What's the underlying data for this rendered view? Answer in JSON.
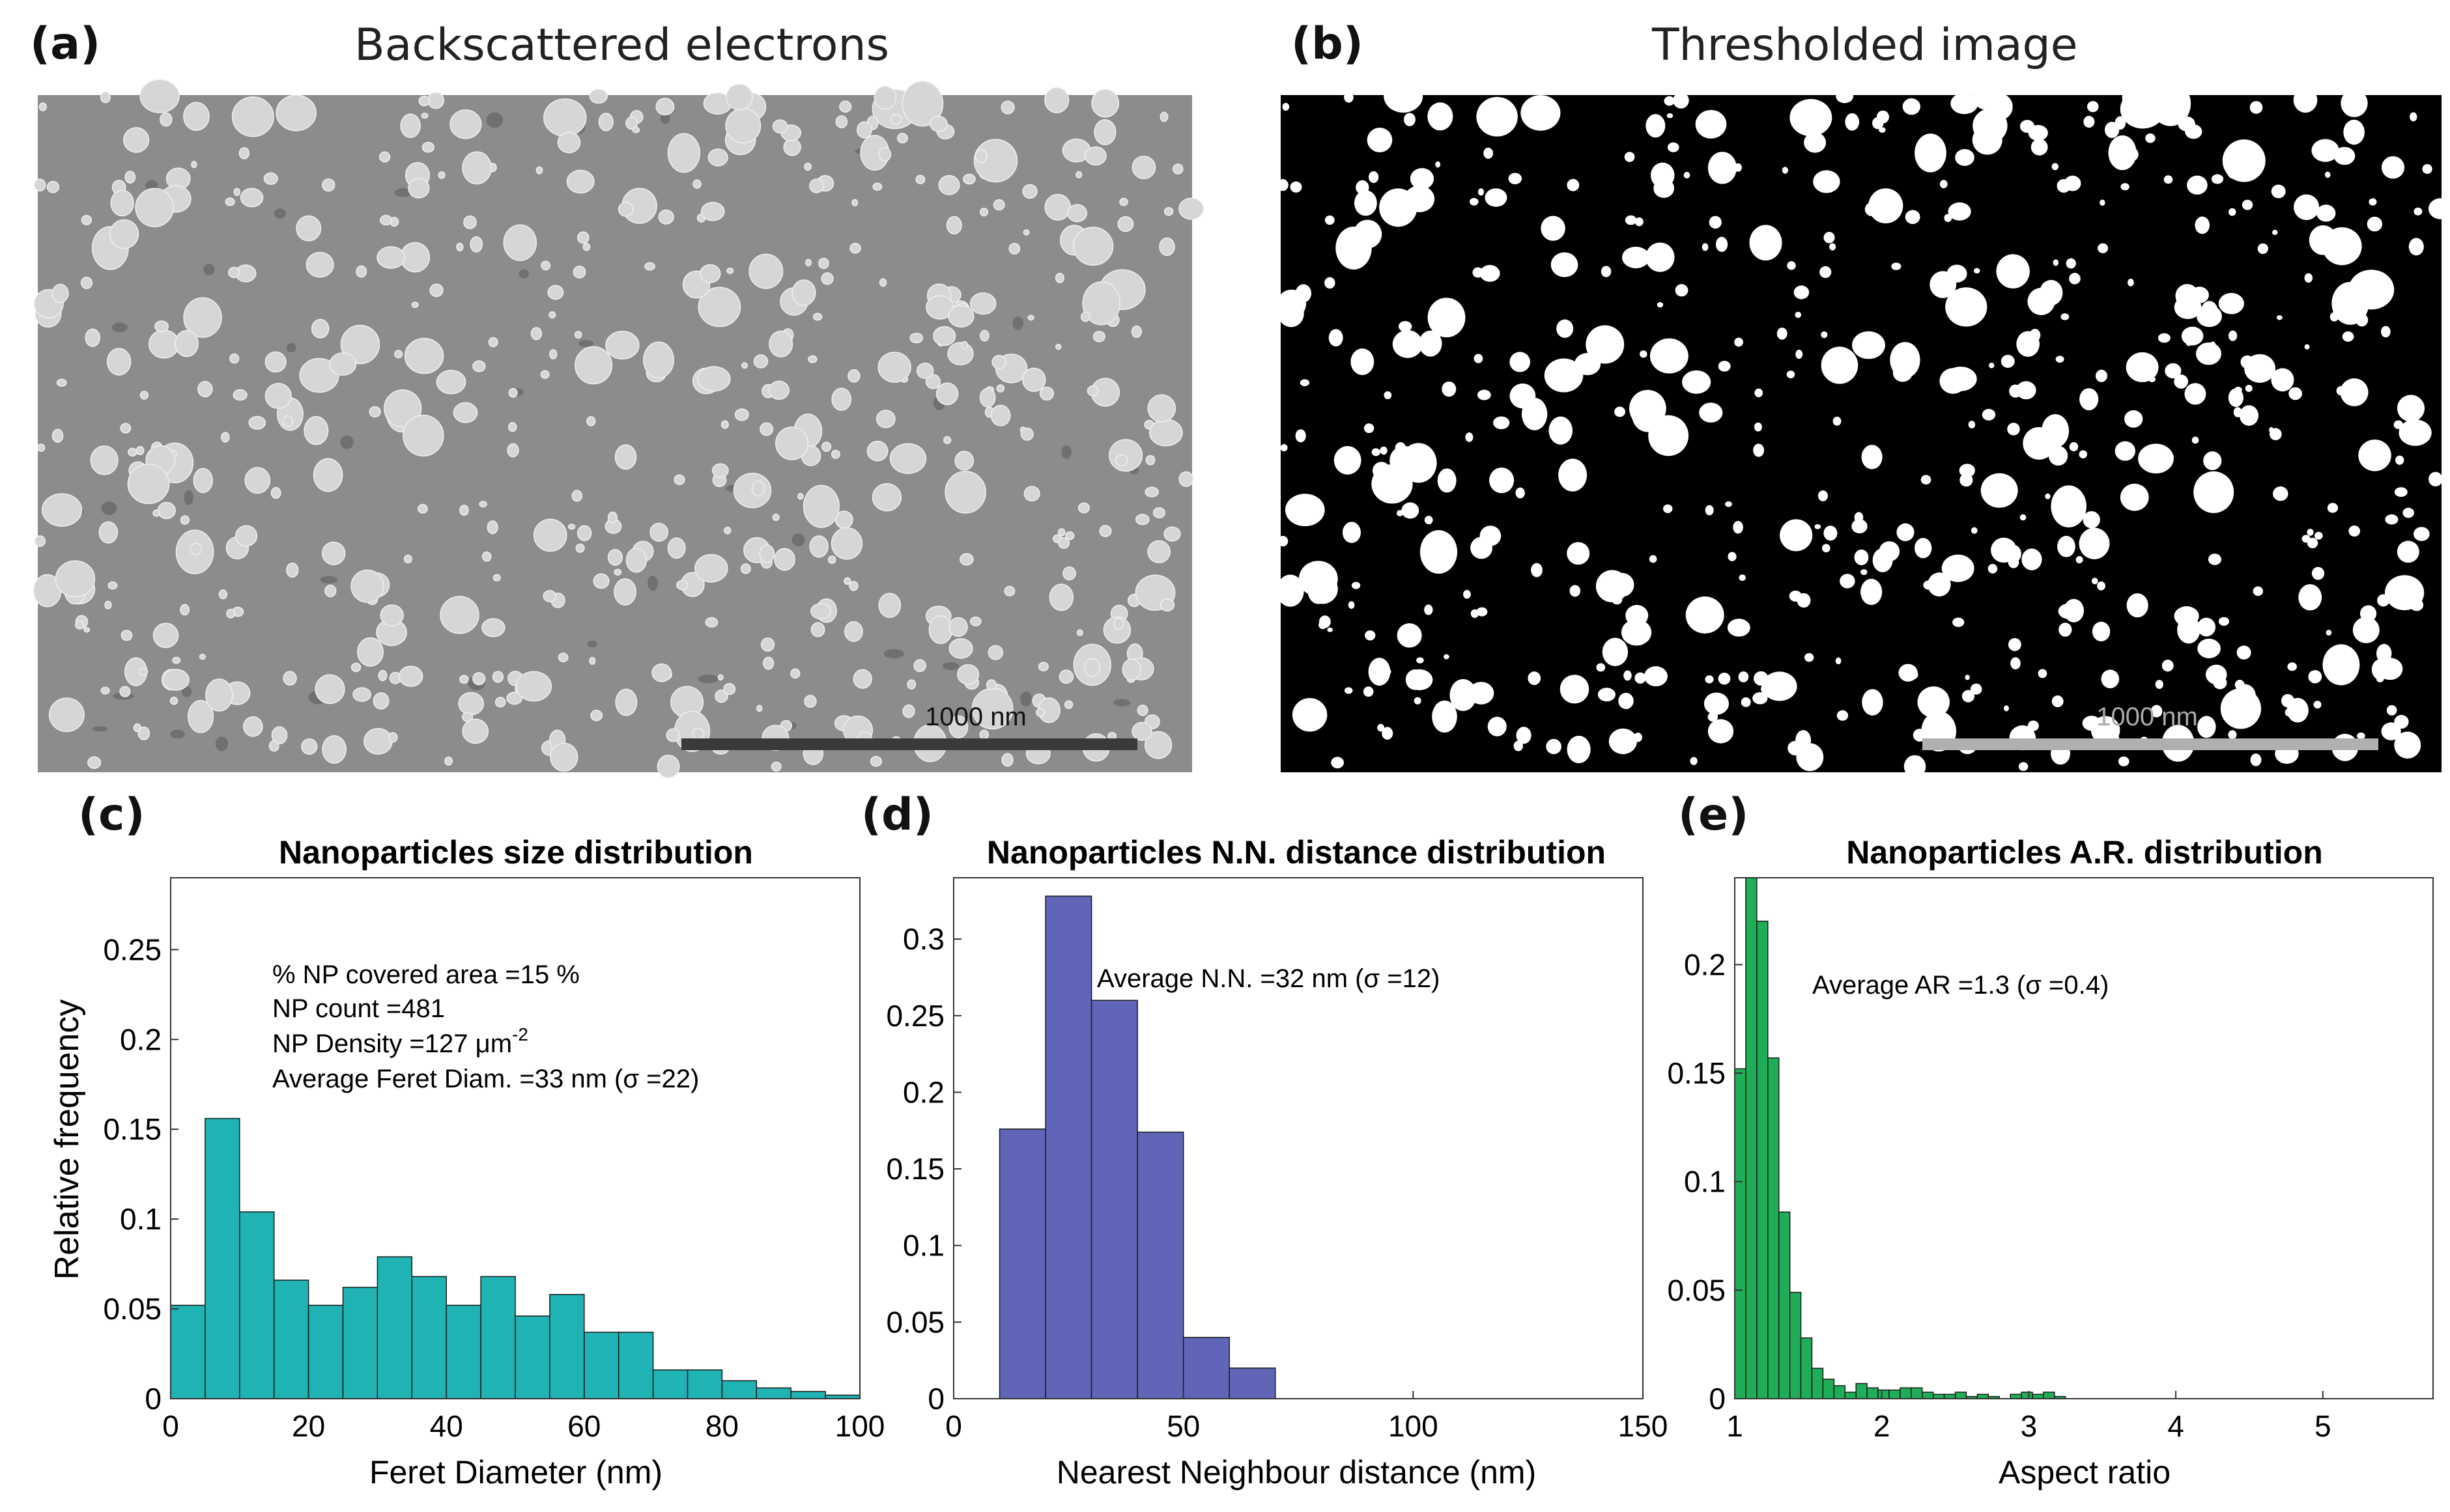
{
  "panels": {
    "a": {
      "label": "(a)",
      "title": "Backscattered electrons",
      "scalebar": "1000 nm"
    },
    "b": {
      "label": "(b)",
      "title": "Thresholded image",
      "scalebar": "1000 nm"
    },
    "c": {
      "label": "(c)"
    },
    "d": {
      "label": "(d)"
    },
    "e": {
      "label": "(e)"
    }
  },
  "colors": {
    "sem_background": "#8c8c8c",
    "sem_particle": "#d6d6d6",
    "threshold_background": "#000000",
    "threshold_particle": "#ffffff",
    "size_bars": "#1fb3b3",
    "nn_bars": "#6065b8",
    "ar_bars": "#1fae57"
  },
  "chart_data": [
    {
      "id": "size",
      "type": "bar",
      "title": "Nanoparticles size distribution",
      "xlabel": "Feret Diameter (nm)",
      "ylabel": "Relative frequency",
      "xlim": [
        0,
        100
      ],
      "ylim": [
        0,
        0.29
      ],
      "xticks": [
        0,
        20,
        40,
        60,
        80,
        100
      ],
      "yticks": [
        0,
        0.05,
        0.1,
        0.15,
        0.2,
        0.25
      ],
      "ytick_labels": [
        "0",
        "0.05",
        "0.1",
        "0.15",
        "0.2",
        "0.25"
      ],
      "bin_edges": [
        0,
        5,
        10,
        15,
        20,
        25,
        30,
        35,
        40,
        45,
        50,
        55,
        60,
        65,
        70,
        75,
        80,
        85,
        90,
        95,
        100
      ],
      "values": [
        0.052,
        0.156,
        0.104,
        0.066,
        0.052,
        0.062,
        0.079,
        0.068,
        0.052,
        0.068,
        0.046,
        0.058,
        0.037,
        0.037,
        0.016,
        0.016,
        0.01,
        0.006,
        0.004,
        0.002
      ],
      "annotations": [
        "% NP covered area =15 %",
        "NP count =481",
        "NP Density =127 μm",
        "-2",
        "Average Feret Diam. =33 nm (σ =22)"
      ]
    },
    {
      "id": "nn",
      "type": "bar",
      "title": "Nanoparticles N.N. distance distribution",
      "xlabel": "Nearest Neighbour distance (nm)",
      "ylabel": "",
      "xlim": [
        0,
        150
      ],
      "ylim": [
        0,
        0.34
      ],
      "xticks": [
        0,
        50,
        100,
        150
      ],
      "yticks": [
        0,
        0.05,
        0.1,
        0.15,
        0.2,
        0.25,
        0.3
      ],
      "ytick_labels": [
        "0",
        "0.05",
        "0.1",
        "0.15",
        "0.2",
        "0.25",
        "0.3"
      ],
      "bin_edges": [
        10,
        20,
        30,
        40,
        50,
        60,
        70
      ],
      "values": [
        0.176,
        0.328,
        0.26,
        0.174,
        0.04,
        0.02
      ],
      "annotations": [
        "Average N.N. =32 nm (σ =12)"
      ]
    },
    {
      "id": "ar",
      "type": "bar",
      "title": "Nanoparticles A.R. distribution",
      "xlabel": "Aspect ratio",
      "ylabel": "",
      "xlim": [
        1,
        5.75
      ],
      "ylim": [
        0,
        0.24
      ],
      "xticks": [
        1,
        2,
        3,
        4,
        5
      ],
      "yticks": [
        0,
        0.05,
        0.1,
        0.15,
        0.2
      ],
      "ytick_labels": [
        "0",
        "0.05",
        "0.1",
        "0.15",
        "0.2"
      ],
      "bin_edges": [
        1.0,
        1.075,
        1.15,
        1.225,
        1.3,
        1.375,
        1.45,
        1.525,
        1.6,
        1.675,
        1.75,
        1.825,
        1.9,
        1.975,
        2.05,
        2.125,
        2.2,
        2.275,
        2.35,
        2.425,
        2.5,
        2.575,
        2.65,
        2.725,
        2.8,
        2.875,
        2.95,
        3.025,
        3.1,
        3.175,
        3.25
      ],
      "values": [
        0.152,
        0.24,
        0.22,
        0.157,
        0.086,
        0.049,
        0.028,
        0.014,
        0.009,
        0.006,
        0.003,
        0.007,
        0.005,
        0.004,
        0.004,
        0.005,
        0.005,
        0.003,
        0.002,
        0.002,
        0.003,
        0.001,
        0.002,
        0.001,
        0.0,
        0.002,
        0.003,
        0.002,
        0.003,
        0.001
      ],
      "annotations": [
        "Average AR =1.3 (σ =0.4)"
      ]
    }
  ]
}
